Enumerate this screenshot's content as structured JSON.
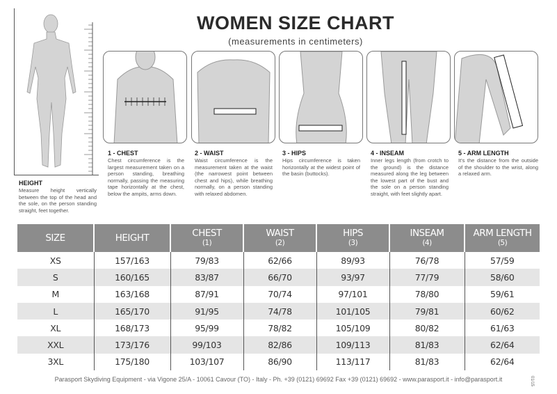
{
  "title": "WOMEN SIZE CHART",
  "subtitle": "(measurements in centimeters)",
  "captions": [
    {
      "head": "HEIGHT",
      "text": "Measure height vertically between the top of the head and the sole, on the person standing straight, feet together."
    },
    {
      "head": "1 - CHEST",
      "text": "Chest circumference is the largest measurement taken on a person standing, breathing normally, passing the measuring tape horizontally at the chest, below the ampits, arms down."
    },
    {
      "head": "2 - WAIST",
      "text": "Waist circumference is the measurement taken at the waist (the narrowest point between chest and hips), while breathing normally, on a person standing with relaxed abdomen."
    },
    {
      "head": "3 - HIPS",
      "text": "Hips circumference is taken horizontally at the widest point of the basin (buttocks)."
    },
    {
      "head": "4 - INSEAM",
      "text": "Inner legs length (from crotch to the ground) is the distance measured along the leg between the lowest part of the bust and the sole on a person standing straight, with feet slightly apart."
    },
    {
      "head": "5 - ARM LENGTH",
      "text": "It's the distance from the outside of the shoulder to the wrist, along a relaxed arm."
    }
  ],
  "table": {
    "headers": [
      {
        "label": "SIZE",
        "sub": ""
      },
      {
        "label": "HEIGHT",
        "sub": ""
      },
      {
        "label": "CHEST",
        "sub": "(1)"
      },
      {
        "label": "WAIST",
        "sub": "(2)"
      },
      {
        "label": "HIPS",
        "sub": "(3)"
      },
      {
        "label": "INSEAM",
        "sub": "(4)"
      },
      {
        "label": "ARM LENGTH",
        "sub": "(5)"
      }
    ],
    "rows": [
      [
        "XS",
        "157/163",
        "79/83",
        "62/66",
        "89/93",
        "76/78",
        "57/59"
      ],
      [
        "S",
        "160/165",
        "83/87",
        "66/70",
        "93/97",
        "77/79",
        "58/60"
      ],
      [
        "M",
        "163/168",
        "87/91",
        "70/74",
        "97/101",
        "78/80",
        "59/61"
      ],
      [
        "L",
        "165/170",
        "91/95",
        "74/78",
        "101/105",
        "79/81",
        "60/62"
      ],
      [
        "XL",
        "168/173",
        "95/99",
        "78/82",
        "105/109",
        "80/82",
        "61/63"
      ],
      [
        "XXL",
        "173/176",
        "99/103",
        "82/86",
        "109/113",
        "81/83",
        "62/64"
      ],
      [
        "3XL",
        "175/180",
        "103/107",
        "86/90",
        "113/117",
        "81/83",
        "62/64"
      ]
    ]
  },
  "footer": "Parasport Skydiving Equipment - via Vigone 25/A - 10061 Cavour (TO) - Italy - Ph. +39 (0121) 69692 Fax +39 (0121) 69692 - www.parasport.it - info@parasport.it",
  "code": "01/15"
}
